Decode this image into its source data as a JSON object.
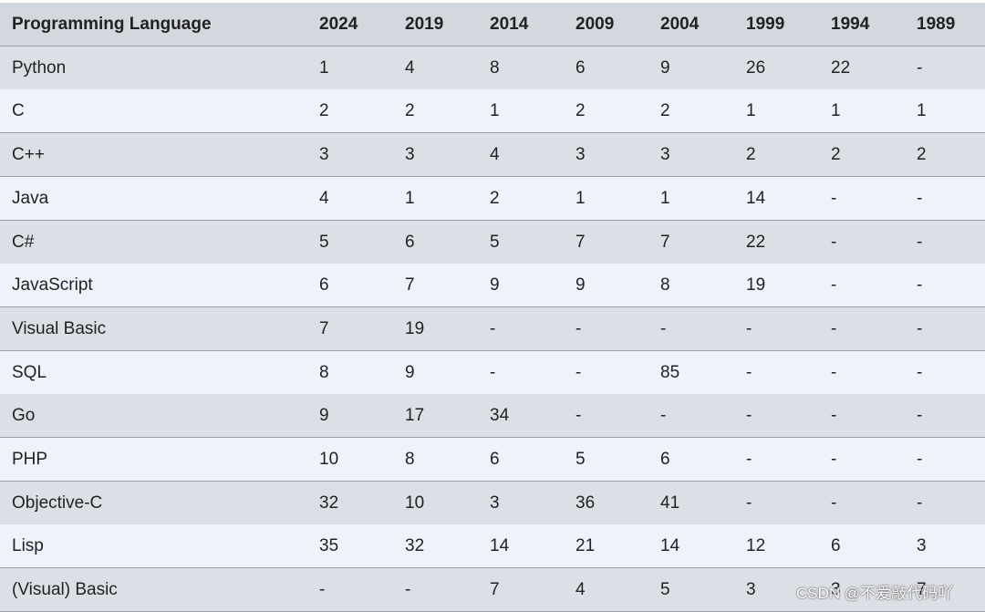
{
  "table": {
    "header": [
      "Programming Language",
      "2024",
      "2019",
      "2014",
      "2009",
      "2004",
      "1999",
      "1994",
      "1989"
    ],
    "rows": [
      [
        "Python",
        "1",
        "4",
        "8",
        "6",
        "9",
        "26",
        "22",
        "-"
      ],
      [
        "C",
        "2",
        "2",
        "1",
        "2",
        "2",
        "1",
        "1",
        "1"
      ],
      [
        "C++",
        "3",
        "3",
        "4",
        "3",
        "3",
        "2",
        "2",
        "2"
      ],
      [
        "Java",
        "4",
        "1",
        "2",
        "1",
        "1",
        "14",
        "-",
        "-"
      ],
      [
        "C#",
        "5",
        "6",
        "5",
        "7",
        "7",
        "22",
        "-",
        "-"
      ],
      [
        "JavaScript",
        "6",
        "7",
        "9",
        "9",
        "8",
        "19",
        "-",
        "-"
      ],
      [
        "Visual Basic",
        "7",
        "19",
        "-",
        "-",
        "-",
        "-",
        "-",
        "-"
      ],
      [
        "SQL",
        "8",
        "9",
        "-",
        "-",
        "85",
        "-",
        "-",
        "-"
      ],
      [
        "Go",
        "9",
        "17",
        "34",
        "-",
        "-",
        "-",
        "-",
        "-"
      ],
      [
        "PHP",
        "10",
        "8",
        "6",
        "5",
        "6",
        "-",
        "-",
        "-"
      ],
      [
        "Objective-C",
        "32",
        "10",
        "3",
        "36",
        "41",
        "-",
        "-",
        "-"
      ],
      [
        "Lisp",
        "35",
        "32",
        "14",
        "21",
        "14",
        "12",
        "6",
        "3"
      ],
      [
        "(Visual) Basic",
        "-",
        "-",
        "7",
        "4",
        "5",
        "3",
        "3",
        "7"
      ]
    ]
  },
  "watermark": "CSDN @不爱敲代码吖"
}
